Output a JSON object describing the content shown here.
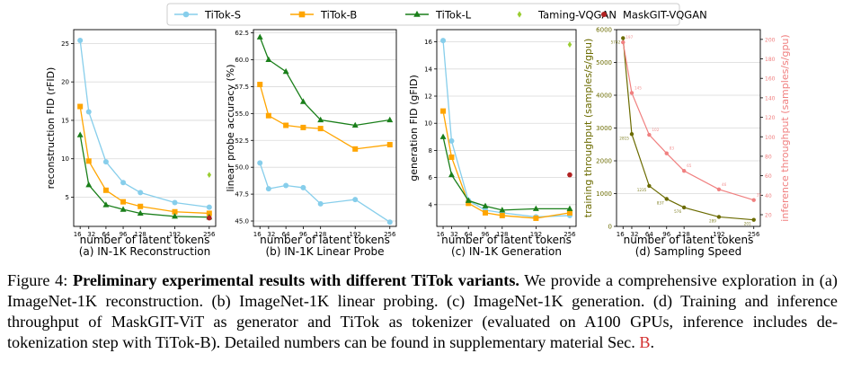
{
  "legend": [
    {
      "name": "TiTok-S",
      "color": "#87ceeb",
      "marker": "circle",
      "line": true
    },
    {
      "name": "TiTok-B",
      "color": "#ffa500",
      "marker": "square",
      "line": true
    },
    {
      "name": "TiTok-L",
      "color": "#1a7f1a",
      "marker": "triangle",
      "line": true
    },
    {
      "name": "Taming-VQGAN",
      "color": "#9acd32",
      "marker": "diamond",
      "line": false
    },
    {
      "name": "MaskGIT-VQGAN",
      "color": "#b22222",
      "marker": "circle",
      "line": false
    }
  ],
  "chart_data": [
    {
      "type": "line",
      "subtitle": "(a) IN-1K Reconstruction",
      "xlabel": "number of latent tokens",
      "ylabel": "reconstruction FID (rFID)",
      "xticks": [
        16,
        32,
        64,
        96,
        128,
        192,
        256
      ],
      "yticks": [
        5,
        10,
        15,
        20,
        25
      ],
      "xlim": [
        4,
        268
      ],
      "ylim": [
        1.2,
        26.8
      ],
      "x": [
        16,
        32,
        64,
        96,
        128,
        192,
        256
      ],
      "series": [
        {
          "name": "TiTok-S",
          "values": [
            25.4,
            16.1,
            9.6,
            6.9,
            5.6,
            4.3,
            3.7
          ]
        },
        {
          "name": "TiTok-B",
          "values": [
            16.8,
            9.7,
            5.9,
            4.4,
            3.8,
            3.1,
            2.9
          ]
        },
        {
          "name": "TiTok-L",
          "values": [
            13.1,
            6.6,
            4.0,
            3.4,
            2.9,
            2.5,
            2.4
          ]
        }
      ],
      "references": [
        {
          "name": "Taming-VQGAN",
          "x": 256,
          "y": 7.9
        },
        {
          "name": "MaskGIT-VQGAN",
          "x": 256,
          "y": 2.3
        }
      ]
    },
    {
      "type": "line",
      "subtitle": "(b) IN-1K Linear Probe",
      "xlabel": "number of latent tokens",
      "ylabel": "linear probe accuracy (%)",
      "xticks": [
        16,
        32,
        64,
        96,
        128,
        192,
        256
      ],
      "yticks": [
        45.0,
        47.5,
        50.0,
        52.5,
        55.0,
        57.5,
        60.0,
        62.5
      ],
      "xlim": [
        4,
        268
      ],
      "ylim": [
        44.5,
        62.8
      ],
      "x": [
        16,
        32,
        64,
        96,
        128,
        192,
        256
      ],
      "series": [
        {
          "name": "TiTok-S",
          "values": [
            50.4,
            48.0,
            48.3,
            48.1,
            46.6,
            47.0,
            44.9
          ]
        },
        {
          "name": "TiTok-B",
          "values": [
            57.7,
            54.8,
            53.9,
            53.7,
            53.6,
            51.7,
            52.1
          ]
        },
        {
          "name": "TiTok-L",
          "values": [
            62.1,
            60.0,
            58.9,
            56.1,
            54.4,
            53.9,
            54.4
          ]
        }
      ]
    },
    {
      "type": "line",
      "subtitle": "(c) IN-1K Generation",
      "xlabel": "number of latent tokens",
      "ylabel": "generation FID (gFID)",
      "xticks": [
        16,
        32,
        64,
        96,
        128,
        192,
        256
      ],
      "yticks": [
        4,
        6,
        8,
        10,
        12,
        14,
        16
      ],
      "xlim": [
        4,
        268
      ],
      "ylim": [
        2.4,
        16.9
      ],
      "x": [
        16,
        32,
        64,
        96,
        128,
        192,
        256
      ],
      "series": [
        {
          "name": "TiTok-S",
          "values": [
            16.1,
            8.7,
            4.3,
            3.6,
            3.4,
            3.1,
            3.2
          ]
        },
        {
          "name": "TiTok-B",
          "values": [
            10.9,
            7.5,
            4.1,
            3.4,
            3.2,
            3.0,
            3.4
          ]
        },
        {
          "name": "TiTok-L",
          "values": [
            9.0,
            6.2,
            4.3,
            3.9,
            3.6,
            3.7,
            3.7
          ]
        }
      ],
      "references": [
        {
          "name": "Taming-VQGAN",
          "x": 256,
          "y": 15.8
        },
        {
          "name": "MaskGIT-VQGAN",
          "x": 256,
          "y": 6.2
        }
      ]
    },
    {
      "type": "line",
      "subtitle": "(d) Sampling Speed",
      "xlabel": "number of latent tokens",
      "ylabel": "training throughput (samples/s/gpu)",
      "y2label": "inference throughput (samples/s/gpu)",
      "xticks": [
        16,
        32,
        64,
        96,
        128,
        192,
        256
      ],
      "yticks": [
        0,
        1000,
        2000,
        3000,
        4000,
        5000,
        6000
      ],
      "y2ticks": [
        20,
        40,
        60,
        80,
        100,
        120,
        140,
        160,
        180,
        200
      ],
      "xlim": [
        4,
        268
      ],
      "ylim": [
        0,
        6000
      ],
      "y2lim": [
        8,
        210
      ],
      "x": [
        16,
        32,
        64,
        96,
        128,
        192,
        256
      ],
      "series": [
        {
          "name": "training throughput",
          "axis": "left",
          "color": "#6b6b00",
          "values": [
            5742,
            2815,
            1235,
            837,
            576,
            289,
            201
          ]
        },
        {
          "name": "inference throughput",
          "axis": "right",
          "color": "#f08080",
          "values": [
            197,
            145,
            102,
            83,
            65,
            46,
            35
          ]
        }
      ]
    }
  ],
  "caption": {
    "figure_label": "Figure 4: ",
    "bold_title": "Preliminary experimental results with different TiTok variants.",
    "body": " We provide a comprehensive exploration in (a) ImageNet-1K reconstruction. (b) ImageNet-1K linear probing. (c) ImageNet-1K generation. (d) Training and inference throughput of MaskGIT-ViT as generator and TiTok as tokenizer (evaluated on A100 GPUs, inference includes de-tokenization step with TiTok-B). Detailed numbers can be found in supplementary material Sec. ",
    "ref": "B",
    "end": "."
  }
}
